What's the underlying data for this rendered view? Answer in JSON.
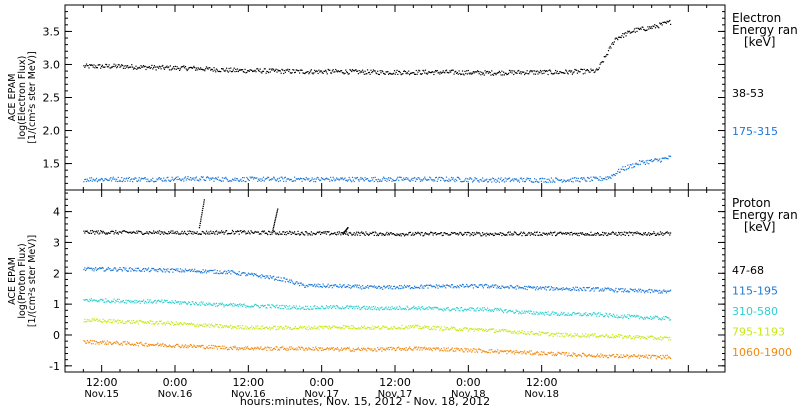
{
  "chart_data": [
    {
      "type": "scatter",
      "ylabel_lines": [
        "ACE EPAM",
        "log(Electron Flux)",
        "[1/(cm²s ster MeV)]"
      ],
      "legend_title_lines": [
        "Electron",
        "Energy ran",
        "[keV]"
      ],
      "ylim": [
        1.1,
        3.9
      ],
      "yticks": [
        1.5,
        2.0,
        2.5,
        3.0,
        3.5
      ],
      "ytick_labels": [
        "1.5",
        "2.0",
        "2.5",
        "3.0",
        "3.5"
      ],
      "series": [
        {
          "name": "38-53",
          "color": "#000000",
          "x_hours": [
            0,
            6,
            12,
            18,
            24,
            30,
            36,
            42,
            48,
            54,
            60,
            66,
            72,
            78,
            84,
            85.5,
            87,
            90,
            93,
            96
          ],
          "values": [
            2.98,
            2.98,
            2.96,
            2.95,
            2.92,
            2.91,
            2.9,
            2.9,
            2.89,
            2.89,
            2.89,
            2.88,
            2.89,
            2.89,
            2.91,
            3.15,
            3.4,
            3.52,
            3.57,
            3.65
          ]
        },
        {
          "name": "175-315",
          "color": "#1b78d8",
          "x_hours": [
            0,
            6,
            12,
            18,
            24,
            30,
            36,
            42,
            48,
            54,
            60,
            66,
            72,
            78,
            84,
            86,
            88,
            91,
            94,
            96
          ],
          "values": [
            1.27,
            1.27,
            1.27,
            1.28,
            1.27,
            1.27,
            1.27,
            1.27,
            1.27,
            1.27,
            1.27,
            1.26,
            1.26,
            1.26,
            1.27,
            1.3,
            1.42,
            1.52,
            1.56,
            1.6
          ]
        }
      ]
    },
    {
      "type": "scatter",
      "ylabel_lines": [
        "ACE EPAM",
        "log(Proton Flux)",
        "[1/(cm²s ster MeV)]"
      ],
      "legend_title_lines": [
        "Proton",
        "Energy ran",
        "[keV]"
      ],
      "ylim": [
        -1.2,
        4.7
      ],
      "yticks": [
        -1,
        0,
        1,
        2,
        3,
        4
      ],
      "ytick_labels": [
        "-1",
        "0",
        "1",
        "2",
        "3",
        "4"
      ],
      "series": [
        {
          "name": "47-68",
          "color": "#000000",
          "x_hours": [
            0,
            6,
            12,
            18,
            24,
            30,
            36,
            42,
            48,
            54,
            60,
            66,
            72,
            78,
            84,
            90,
            96
          ],
          "values": [
            3.35,
            3.34,
            3.34,
            3.33,
            3.35,
            3.33,
            3.32,
            3.31,
            3.3,
            3.29,
            3.3,
            3.29,
            3.3,
            3.3,
            3.3,
            3.3,
            3.31
          ]
        },
        {
          "name": "115-195",
          "color": "#1b78d8",
          "x_hours": [
            0,
            6,
            12,
            18,
            24,
            30,
            33,
            36,
            42,
            48,
            54,
            60,
            66,
            72,
            78,
            84,
            90,
            96
          ],
          "values": [
            2.15,
            2.15,
            2.12,
            2.1,
            2.05,
            1.9,
            1.8,
            1.62,
            1.6,
            1.55,
            1.58,
            1.6,
            1.6,
            1.55,
            1.52,
            1.5,
            1.45,
            1.42
          ]
        },
        {
          "name": "310-580",
          "color": "#2ecfcf",
          "x_hours": [
            0,
            6,
            12,
            18,
            24,
            30,
            36,
            42,
            48,
            54,
            60,
            66,
            72,
            78,
            84,
            90,
            96
          ],
          "values": [
            1.15,
            1.12,
            1.1,
            1.05,
            0.98,
            0.95,
            0.9,
            0.92,
            0.88,
            0.9,
            0.85,
            0.85,
            0.75,
            0.7,
            0.68,
            0.6,
            0.55
          ]
        },
        {
          "name": "795-1193",
          "color": "#c8e81a",
          "x_hours": [
            0,
            6,
            12,
            18,
            24,
            30,
            36,
            42,
            48,
            54,
            60,
            66,
            72,
            78,
            84,
            90,
            96
          ],
          "values": [
            0.5,
            0.45,
            0.42,
            0.35,
            0.28,
            0.25,
            0.25,
            0.28,
            0.25,
            0.28,
            0.22,
            0.18,
            0.1,
            0.02,
            0.0,
            -0.05,
            -0.1
          ]
        },
        {
          "name": "1060-1900",
          "color": "#f08a10",
          "x_hours": [
            0,
            6,
            12,
            18,
            24,
            30,
            36,
            42,
            48,
            54,
            60,
            66,
            72,
            78,
            84,
            90,
            96
          ],
          "values": [
            -0.2,
            -0.25,
            -0.3,
            -0.35,
            -0.4,
            -0.42,
            -0.42,
            -0.45,
            -0.45,
            -0.42,
            -0.45,
            -0.5,
            -0.55,
            -0.6,
            -0.65,
            -0.68,
            -0.7
          ]
        }
      ],
      "spikes": [
        {
          "x_hours": 19.5,
          "values": [
            3.5,
            4.4
          ],
          "color": "#000000"
        },
        {
          "x_hours": 31.5,
          "values": [
            3.4,
            4.1
          ],
          "color": "#000000"
        },
        {
          "x_hours": 43.0,
          "values": [
            3.3,
            3.5
          ],
          "color": "#000000"
        }
      ]
    }
  ],
  "x_axis": {
    "start_label": "Nov. 15, 2012 09:00",
    "range_hours": [
      -3,
      105
    ],
    "major_ticks_hours": [
      3,
      15,
      27,
      39,
      51,
      63,
      75,
      87,
      99
    ],
    "tick_labels_top": [
      "12:00",
      "0:00",
      "12:00",
      "0:00",
      "12:00",
      "0:00",
      "12:00"
    ],
    "tick_labels_bottom": [
      "Nov.15",
      "Nov.16",
      "Nov.16",
      "Nov.17",
      "Nov.17",
      "Nov.18",
      "Nov.18"
    ],
    "label": "hours:minutes, Nov. 15, 2012 - Nov. 18, 2012"
  },
  "colors": {
    "axis": "#000000",
    "background": "#ffffff"
  }
}
